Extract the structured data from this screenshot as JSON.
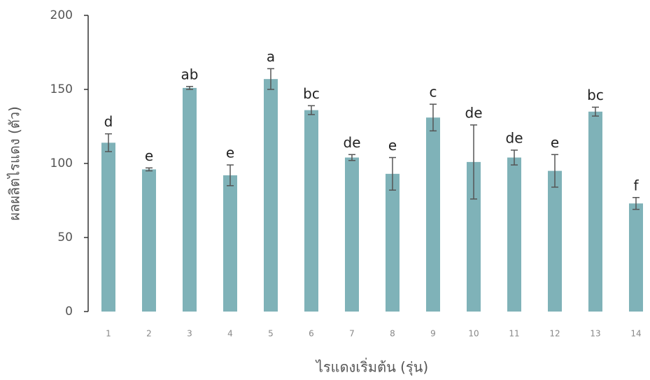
{
  "chart_data": {
    "type": "bar",
    "y_label": "ผลผลิตไรแดง (ตัว)",
    "x_label": "ไรแดงเริ่มต้น (รุ่น)",
    "categories": [
      "1",
      "2",
      "3",
      "4",
      "5",
      "6",
      "7",
      "8",
      "9",
      "10",
      "11",
      "12",
      "13",
      "14"
    ],
    "values": [
      114,
      96,
      151,
      92,
      157,
      136,
      104,
      93,
      131,
      101,
      104,
      95,
      135,
      73
    ],
    "errors": [
      6,
      1,
      1,
      7,
      7,
      3,
      2,
      11,
      9,
      25,
      5,
      11,
      3,
      4
    ],
    "annotations": [
      "d",
      "e",
      "ab",
      "e",
      "a",
      "bc",
      "de",
      "e",
      "c",
      "de",
      "de",
      "e",
      "bc",
      "f"
    ],
    "color": "#7fb2b8",
    "ylim": [
      0,
      200
    ],
    "yticks": [
      0,
      50,
      100,
      150,
      200
    ]
  }
}
